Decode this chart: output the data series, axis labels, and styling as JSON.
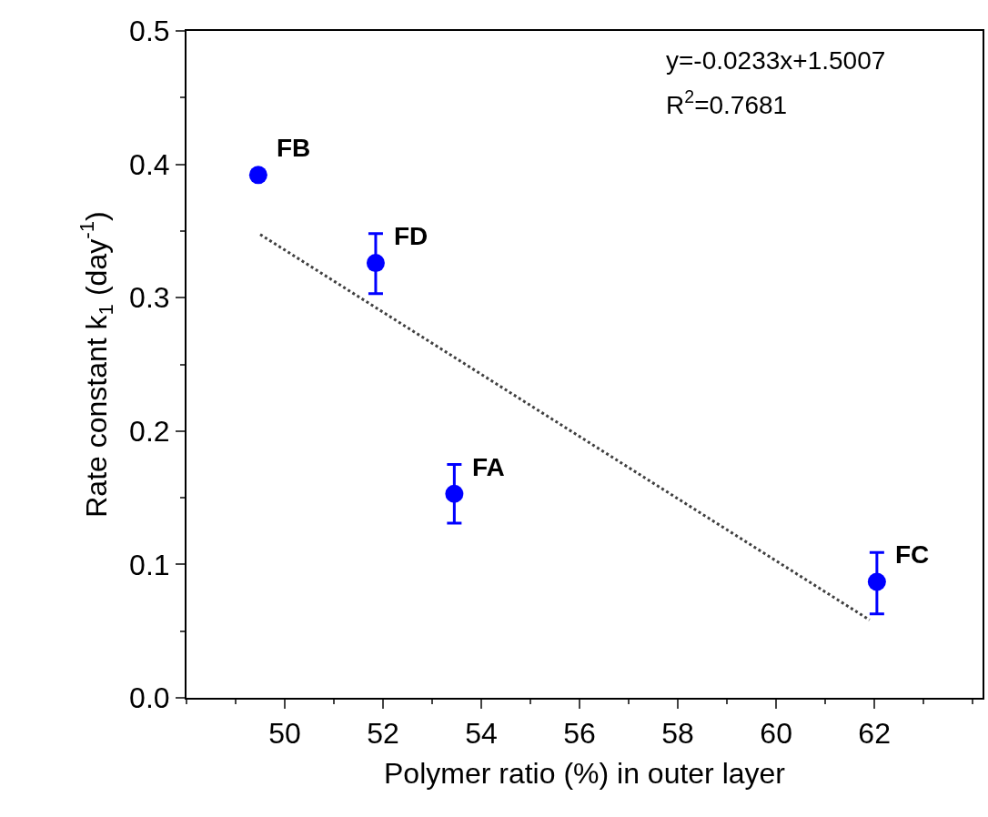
{
  "chart_data": {
    "type": "scatter",
    "xlabel": "Polymer ratio (%) in outer layer",
    "ylabel": "Rate constant k$_{1}$ (day$^{-1}$)",
    "xlim": [
      48,
      64.2
    ],
    "xticks": [
      50,
      52,
      54,
      56,
      58,
      60,
      62
    ],
    "ylim": [
      0,
      0.5
    ],
    "yticks": [
      {
        "value": 0,
        "label": "0.0"
      },
      0.1,
      0.2,
      0.3,
      0.4,
      0.5
    ],
    "marker": "circle",
    "series": [
      {
        "color": "#0000ff",
        "x": [
          49.46,
          51.85,
          53.45,
          62.05
        ],
        "values": [
          0.392,
          0.326,
          0.153,
          0.087
        ],
        "errors": [
          null,
          [
            0.303,
            0.348
          ],
          [
            0.131,
            0.175
          ],
          [
            0.063,
            0.109
          ]
        ]
      },
      {
        "type": "line",
        "color": "#404040",
        "line_style": "dotted",
        "marker": "none",
        "x": [
          49.5,
          61.9
        ],
        "values": [
          0.3474,
          0.0584
        ]
      }
    ],
    "annotations": [
      "y=-0.0233x+1.5007",
      "R$^{2}$=0.7681",
      {
        "text": "FB",
        "x": 49.46,
        "y": 0.392
      },
      {
        "text": "FD",
        "x": 51.85,
        "y": 0.326
      },
      {
        "text": "FA",
        "x": 53.45,
        "y": 0.153
      },
      {
        "text": "FC",
        "x": 62.05,
        "y": 0.087
      }
    ]
  }
}
